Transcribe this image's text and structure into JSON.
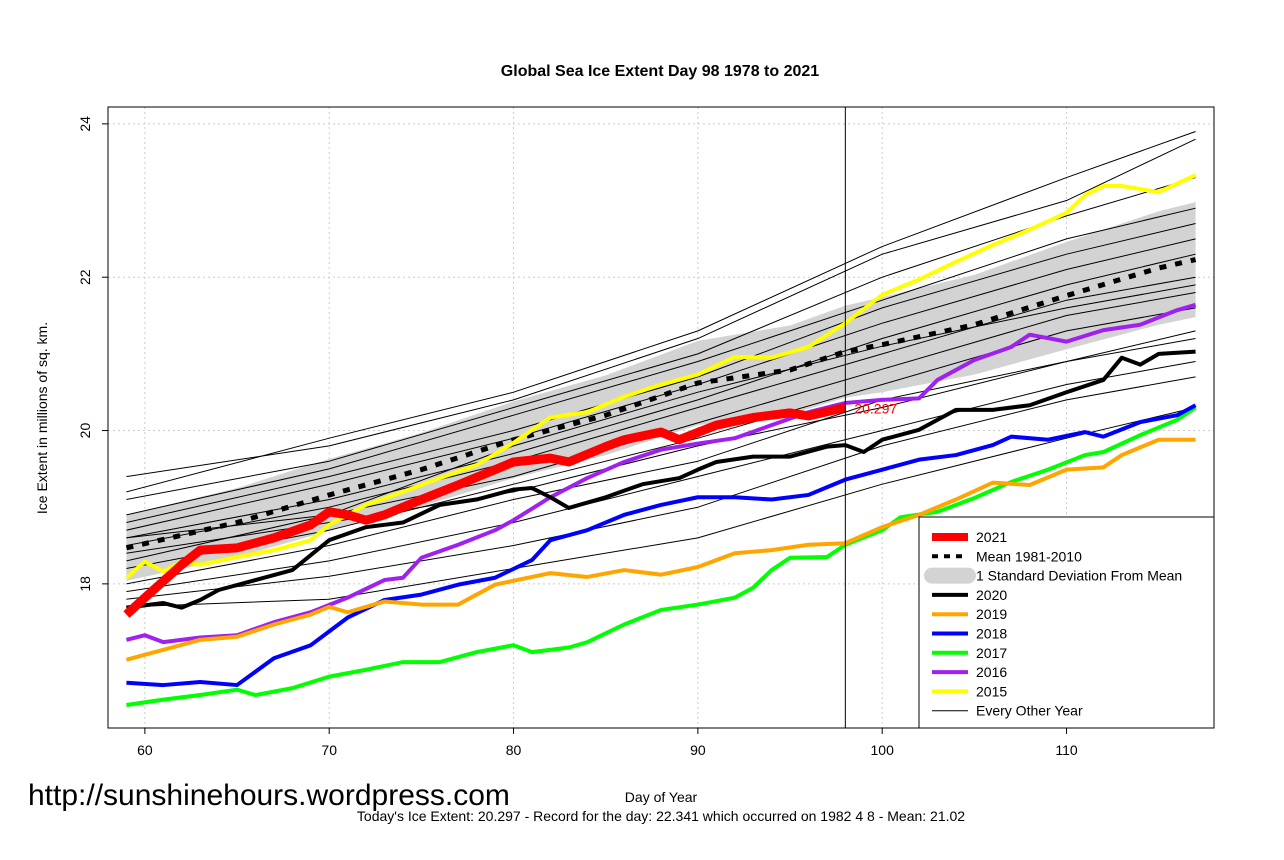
{
  "chart_data": {
    "type": "line",
    "title": "Global Sea Ice Extent Day 98 1978 to 2021",
    "xlabel": "Day of Year",
    "ylabel": "Ice Extent in millions of sq. km.",
    "xlim": [
      58,
      118
    ],
    "ylim": [
      16.12,
      24.22
    ],
    "xticks": [
      60,
      70,
      80,
      90,
      100,
      110
    ],
    "yticks": [
      18,
      20,
      22,
      24
    ],
    "grid": true,
    "legend_position": "bottom-right",
    "marker_day": 98,
    "today_label": "20.297",
    "footer": "Today's Ice Extent: 20.297  - Record for the day: 22.341 which occurred on 1982 4 8  - Mean: 21.02",
    "watermark": "http://sunshinehours.wordpress.com",
    "mean": {
      "name": "Mean 1981-2010",
      "color": "#000000",
      "x": [
        59,
        65,
        70,
        75,
        80,
        85,
        90,
        95,
        98,
        100,
        105,
        110,
        115,
        117
      ],
      "y": [
        18.47,
        18.8,
        19.16,
        19.49,
        19.88,
        20.2,
        20.62,
        20.79,
        21.03,
        21.12,
        21.38,
        21.76,
        22.12,
        22.23
      ]
    },
    "sd_band": {
      "name": "1 Standard Deviation From Mean",
      "color": "#d3d3d3",
      "sd": [
        0.43,
        0.45,
        0.47,
        0.48,
        0.5,
        0.52,
        0.55,
        0.58,
        0.6,
        0.62,
        0.65,
        0.7,
        0.74,
        0.75
      ]
    },
    "series": [
      {
        "name": "2021",
        "color": "#ff0000",
        "width": 9,
        "x": [
          59,
          60,
          62,
          63,
          65,
          67,
          69,
          70,
          71,
          72,
          73,
          75,
          77,
          79,
          80,
          82,
          83,
          85,
          86,
          88,
          89,
          91,
          93,
          95,
          96,
          98
        ],
        "y": [
          17.6,
          17.82,
          18.25,
          18.44,
          18.47,
          18.6,
          18.77,
          18.94,
          18.9,
          18.83,
          18.9,
          19.1,
          19.29,
          19.49,
          19.59,
          19.64,
          19.59,
          19.79,
          19.88,
          19.98,
          19.88,
          20.07,
          20.17,
          20.23,
          20.19,
          20.3
        ]
      },
      {
        "name": "2020",
        "color": "#000000",
        "width": 4,
        "x": [
          59,
          61,
          62,
          63,
          64,
          66,
          68,
          70,
          72,
          74,
          76,
          78,
          80,
          81,
          82,
          83,
          85,
          87,
          89,
          90,
          91,
          93,
          95,
          97,
          98,
          99,
          100,
          102,
          104,
          106,
          108,
          110,
          112,
          113,
          114,
          115,
          117
        ],
        "y": [
          17.69,
          17.75,
          17.69,
          17.79,
          17.92,
          18.05,
          18.18,
          18.57,
          18.74,
          18.8,
          19.03,
          19.1,
          19.23,
          19.25,
          19.13,
          18.99,
          19.13,
          19.3,
          19.38,
          19.49,
          19.59,
          19.66,
          19.66,
          19.79,
          19.81,
          19.72,
          19.88,
          20.01,
          20.27,
          20.27,
          20.33,
          20.5,
          20.66,
          20.95,
          20.86,
          21.0,
          21.03
        ]
      },
      {
        "name": "2019",
        "color": "#ffa500",
        "width": 4,
        "x": [
          59,
          61,
          63,
          65,
          67,
          69,
          70,
          71,
          73,
          75,
          77,
          79,
          81,
          82,
          84,
          86,
          88,
          90,
          92,
          94,
          96,
          98,
          100,
          102,
          104,
          106,
          108,
          110,
          112,
          113,
          115,
          117
        ],
        "y": [
          17.01,
          17.14,
          17.27,
          17.31,
          17.47,
          17.6,
          17.7,
          17.63,
          17.77,
          17.73,
          17.73,
          17.99,
          18.09,
          18.14,
          18.09,
          18.18,
          18.12,
          18.22,
          18.4,
          18.44,
          18.51,
          18.53,
          18.74,
          18.9,
          19.1,
          19.32,
          19.29,
          19.49,
          19.52,
          19.68,
          19.88,
          19.88
        ]
      },
      {
        "name": "2018",
        "color": "#0000ff",
        "width": 4,
        "x": [
          59,
          61,
          63,
          65,
          67,
          69,
          71,
          73,
          75,
          77,
          79,
          81,
          82,
          84,
          86,
          88,
          90,
          92,
          94,
          96,
          98,
          100,
          102,
          104,
          106,
          107,
          109,
          111,
          112,
          114,
          116,
          117
        ],
        "y": [
          16.71,
          16.68,
          16.72,
          16.68,
          17.03,
          17.2,
          17.56,
          17.79,
          17.86,
          17.99,
          18.08,
          18.31,
          18.57,
          18.7,
          18.9,
          19.03,
          19.13,
          19.13,
          19.1,
          19.16,
          19.36,
          19.49,
          19.62,
          19.68,
          19.81,
          19.92,
          19.88,
          19.98,
          19.92,
          20.11,
          20.2,
          20.33
        ]
      },
      {
        "name": "2017",
        "color": "#00ff00",
        "width": 4,
        "x": [
          59,
          61,
          63,
          65,
          66,
          68,
          70,
          72,
          74,
          76,
          78,
          80,
          81,
          83,
          84,
          86,
          88,
          90,
          92,
          93,
          94,
          95,
          97,
          98,
          100,
          101,
          103,
          105,
          107,
          109,
          111,
          112,
          114,
          116,
          117
        ],
        "y": [
          16.42,
          16.49,
          16.55,
          16.62,
          16.55,
          16.64,
          16.79,
          16.88,
          16.98,
          16.98,
          17.11,
          17.2,
          17.11,
          17.17,
          17.24,
          17.47,
          17.66,
          17.73,
          17.82,
          17.95,
          18.18,
          18.34,
          18.35,
          18.51,
          18.7,
          18.87,
          18.94,
          19.12,
          19.33,
          19.49,
          19.68,
          19.72,
          19.94,
          20.14,
          20.3
        ]
      },
      {
        "name": "2016",
        "color": "#a020f0",
        "width": 4,
        "x": [
          59,
          60,
          61,
          63,
          65,
          67,
          69,
          71,
          73,
          74,
          75,
          77,
          79,
          80,
          82,
          84,
          86,
          88,
          90,
          92,
          94,
          96,
          98,
          100,
          102,
          103,
          105,
          107,
          108,
          110,
          112,
          114,
          116,
          117
        ],
        "y": [
          17.27,
          17.33,
          17.24,
          17.3,
          17.33,
          17.5,
          17.63,
          17.82,
          18.05,
          18.08,
          18.34,
          18.51,
          18.7,
          18.83,
          19.13,
          19.38,
          19.59,
          19.75,
          19.83,
          19.9,
          20.07,
          20.24,
          20.36,
          20.4,
          20.42,
          20.66,
          20.92,
          21.09,
          21.25,
          21.16,
          21.31,
          21.38,
          21.57,
          21.64
        ]
      },
      {
        "name": "2015",
        "color": "#ffff00",
        "width": 4,
        "x": [
          59,
          60,
          61,
          62,
          63,
          65,
          67,
          69,
          70,
          72,
          74,
          76,
          78,
          80,
          82,
          84,
          86,
          88,
          90,
          92,
          94,
          96,
          98,
          100,
          102,
          104,
          106,
          108,
          110,
          111,
          112,
          113,
          115,
          117
        ],
        "y": [
          18.08,
          18.29,
          18.16,
          18.29,
          18.25,
          18.35,
          18.44,
          18.57,
          18.77,
          19.03,
          19.2,
          19.38,
          19.55,
          19.84,
          20.17,
          20.24,
          20.44,
          20.6,
          20.73,
          20.96,
          20.95,
          21.09,
          21.4,
          21.77,
          21.97,
          22.2,
          22.42,
          22.62,
          22.84,
          23.07,
          23.19,
          23.19,
          23.11,
          23.33
        ]
      }
    ],
    "other_years": {
      "name": "Every Other Year",
      "color": "#000000",
      "x": [
        59,
        70,
        80,
        90,
        100,
        110,
        117
      ],
      "lines": [
        [
          19.2,
          19.9,
          20.5,
          21.3,
          22.4,
          23.3,
          23.9
        ],
        [
          19.4,
          19.8,
          20.4,
          21.2,
          22.3,
          23.0,
          23.8
        ],
        [
          19.1,
          19.6,
          20.3,
          21.0,
          22.0,
          22.8,
          23.3
        ],
        [
          18.9,
          19.5,
          20.2,
          20.9,
          21.7,
          22.5,
          22.9
        ],
        [
          18.8,
          19.4,
          20.0,
          20.7,
          21.6,
          22.3,
          22.7
        ],
        [
          18.7,
          19.3,
          19.9,
          20.6,
          21.4,
          22.1,
          22.5
        ],
        [
          18.6,
          19.1,
          19.7,
          20.4,
          21.2,
          21.9,
          22.3
        ],
        [
          18.5,
          19.0,
          19.6,
          20.3,
          21.0,
          21.7,
          22.0
        ],
        [
          18.3,
          18.9,
          19.4,
          20.1,
          20.8,
          21.5,
          21.8
        ],
        [
          18.2,
          18.7,
          19.3,
          19.9,
          20.6,
          21.3,
          21.6
        ],
        [
          18.0,
          18.5,
          19.1,
          19.6,
          20.4,
          20.9,
          21.3
        ],
        [
          17.9,
          18.3,
          18.8,
          19.4,
          20.0,
          20.6,
          20.9
        ],
        [
          17.8,
          18.1,
          18.5,
          19.0,
          19.8,
          20.4,
          20.7
        ],
        [
          18.4,
          18.8,
          19.2,
          19.8,
          20.3,
          20.9,
          21.2
        ],
        [
          18.6,
          18.9,
          19.8,
          20.5,
          21.1,
          21.6,
          21.9
        ],
        [
          17.7,
          17.8,
          18.2,
          18.6,
          19.3,
          19.9,
          20.3
        ]
      ]
    }
  }
}
